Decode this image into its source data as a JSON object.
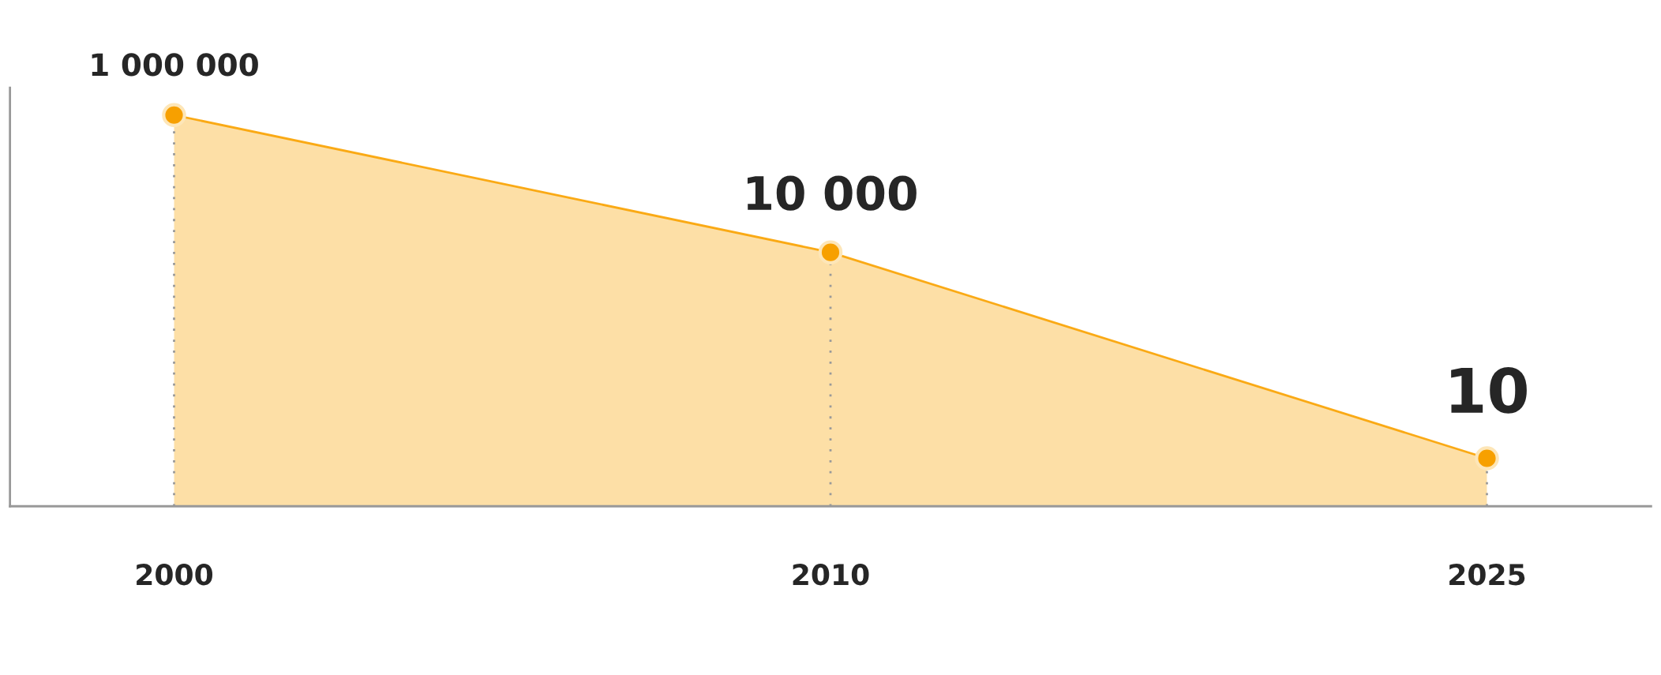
{
  "chart_data": {
    "type": "area",
    "categories": [
      "2000",
      "2010",
      "2025"
    ],
    "series": [
      {
        "color": "#f9a200",
        "values": [
          1000000,
          10000,
          10
        ]
      }
    ],
    "log": "y",
    "ylim": [
      2,
      2500000
    ],
    "tick_labels": "x",
    "data_labels": true
  }
}
